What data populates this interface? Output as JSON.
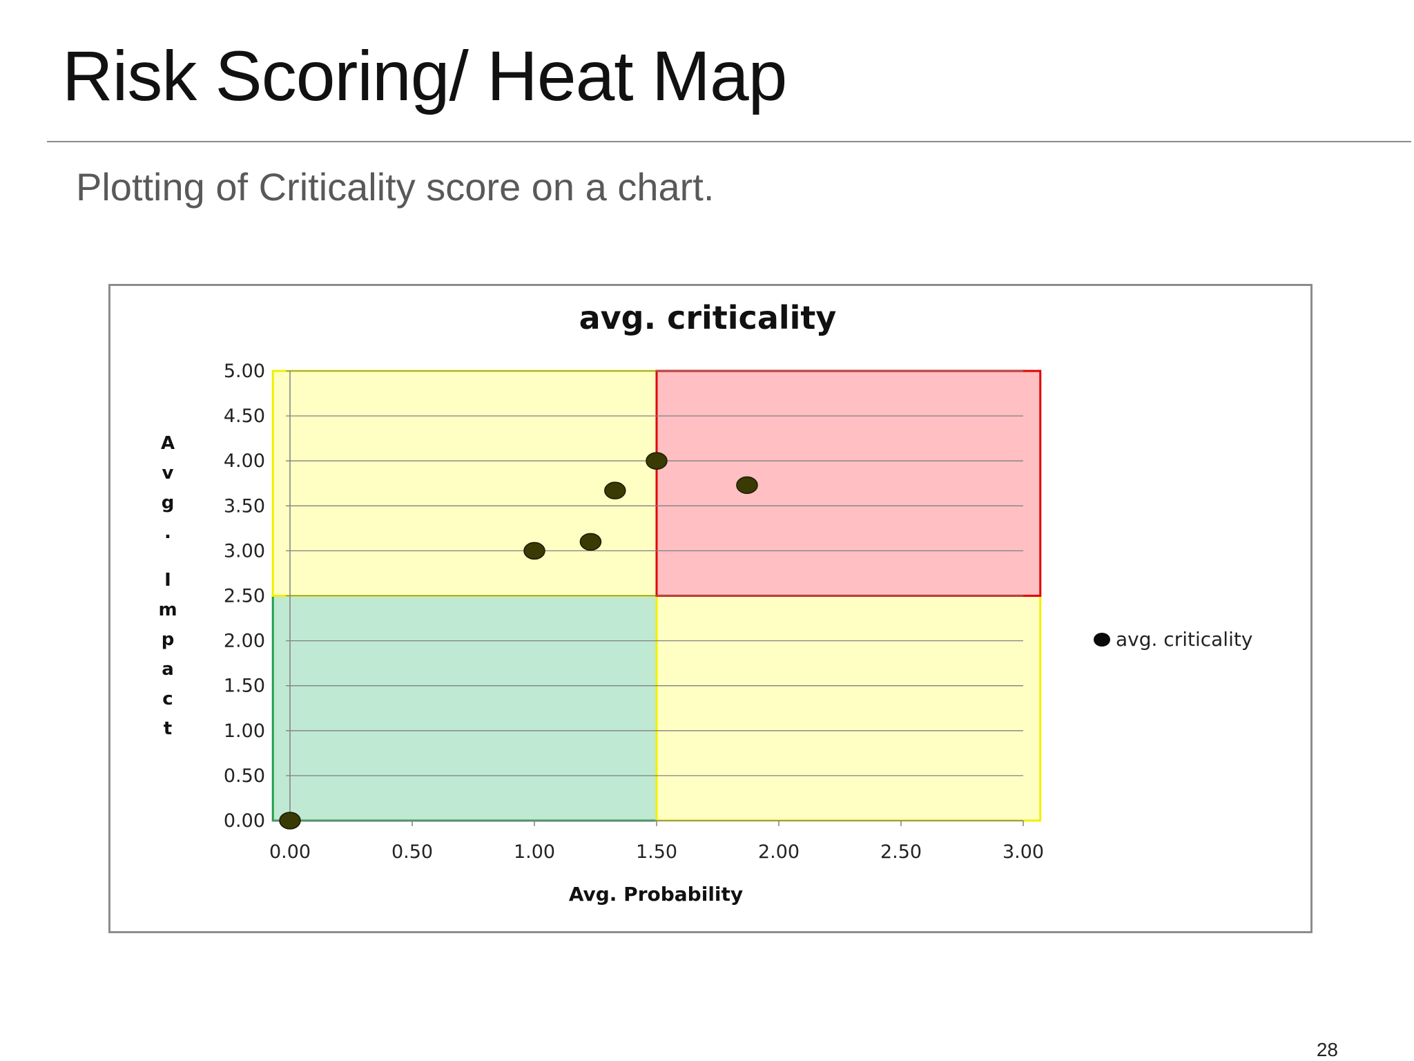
{
  "slide": {
    "title": "Risk Scoring/ Heat Map",
    "subtitle": "Plotting of Criticality score on a chart.",
    "page_number": "28"
  },
  "chart_data": {
    "type": "scatter",
    "title": "avg. criticality",
    "xlabel": "Avg. Probability",
    "ylabel": "Avg. Impact",
    "xlim": [
      0,
      3
    ],
    "ylim": [
      0,
      5
    ],
    "x_ticks": [
      "0.00",
      "0.50",
      "1.00",
      "1.50",
      "2.00",
      "2.50",
      "3.00"
    ],
    "y_ticks": [
      "0.00",
      "0.50",
      "1.00",
      "1.50",
      "2.00",
      "2.50",
      "3.00",
      "3.50",
      "4.00",
      "4.50",
      "5.00"
    ],
    "grid": "horizontal",
    "legend": "right",
    "series": [
      {
        "name": "avg. criticality",
        "points": [
          {
            "x": 0.0,
            "y": 0.0
          },
          {
            "x": 1.0,
            "y": 3.0
          },
          {
            "x": 1.23,
            "y": 3.1
          },
          {
            "x": 1.33,
            "y": 3.67
          },
          {
            "x": 1.5,
            "y": 4.0
          },
          {
            "x": 1.87,
            "y": 3.73
          }
        ]
      }
    ],
    "zones": [
      {
        "name": "low",
        "x": [
          -0.07,
          1.5
        ],
        "y": [
          0,
          2.5
        ],
        "fill": "#bfe9d3",
        "stroke": "#1fa04a"
      },
      {
        "name": "medium-top-left",
        "x": [
          -0.07,
          1.5
        ],
        "y": [
          2.5,
          5
        ],
        "fill": "#ffffc4",
        "stroke": "#f0f000"
      },
      {
        "name": "medium-bottom-right",
        "x": [
          1.5,
          3.07
        ],
        "y": [
          0,
          2.5
        ],
        "fill": "#ffffc4",
        "stroke": "#f0f000"
      },
      {
        "name": "high",
        "x": [
          1.5,
          3.07
        ],
        "y": [
          2.5,
          5
        ],
        "fill": "#ffbfc3",
        "stroke": "#e00000"
      }
    ],
    "colors": {
      "point": "#3a3a05",
      "grid": "#808080",
      "axis": "#808080"
    }
  }
}
